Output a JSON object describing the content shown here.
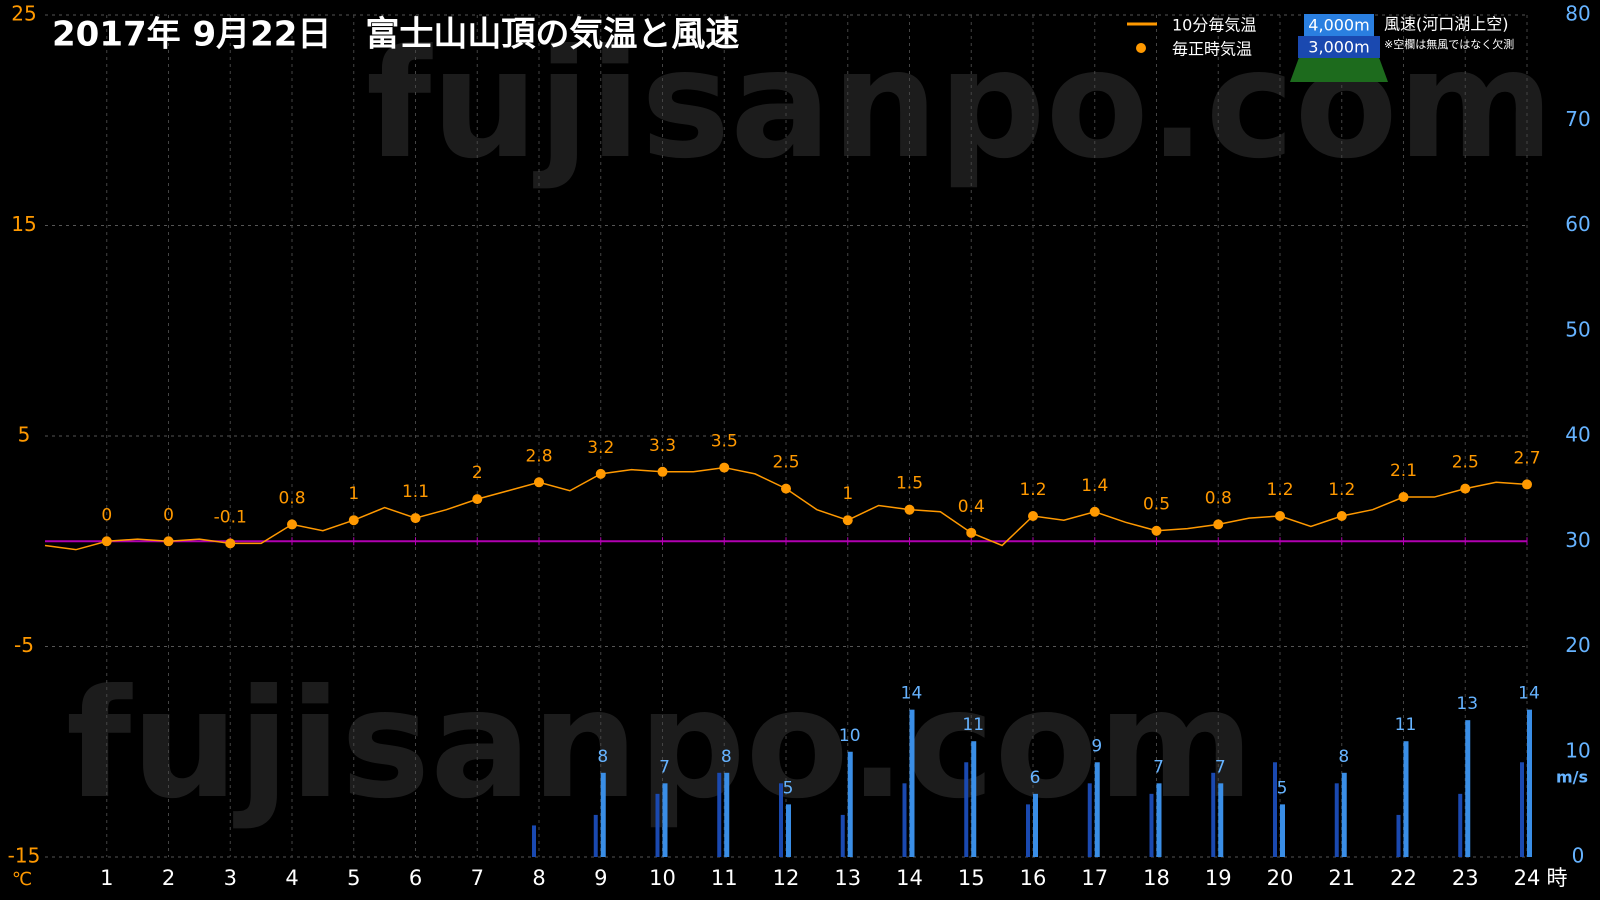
{
  "chart_data": {
    "type": "line",
    "title": "2017年 9月22日　富士山山頂の気温と風速",
    "watermark": "fujisanpo.com",
    "x_unit": "時",
    "y_unit": "℃",
    "y2_unit": "m/s",
    "xlim": [
      0,
      24
    ],
    "xticks": [
      1,
      2,
      3,
      4,
      5,
      6,
      7,
      8,
      9,
      10,
      11,
      12,
      13,
      14,
      15,
      16,
      17,
      18,
      19,
      20,
      21,
      22,
      23,
      24
    ],
    "ylim": [
      -15,
      25
    ],
    "yticks": [
      -15,
      -5,
      5,
      15,
      25
    ],
    "y2lim": [
      0,
      80
    ],
    "y2ticks": [
      0,
      10,
      20,
      30,
      40,
      50,
      60,
      70,
      80
    ],
    "grid": true,
    "reference_line": {
      "value": 0,
      "color": "#b000b0"
    },
    "line_series": {
      "name": "10分毎気温",
      "color": "#ff9900",
      "x": [
        0,
        0.5,
        1,
        1.5,
        2,
        2.5,
        3,
        3.5,
        4,
        4.5,
        5,
        5.5,
        6,
        6.5,
        7,
        7.5,
        8,
        8.5,
        9,
        9.5,
        10,
        10.5,
        11,
        11.5,
        12,
        12.5,
        13,
        13.5,
        14,
        14.5,
        15,
        15.5,
        16,
        16.5,
        17,
        17.5,
        18,
        18.5,
        19,
        19.5,
        20,
        20.5,
        21,
        21.5,
        22,
        22.5,
        23,
        23.5,
        24
      ],
      "values": [
        -0.2,
        -0.4,
        0,
        0.1,
        0,
        0.1,
        -0.1,
        -0.1,
        0.8,
        0.5,
        1.0,
        1.6,
        1.1,
        1.5,
        2.0,
        2.4,
        2.8,
        2.4,
        3.2,
        3.4,
        3.3,
        3.3,
        3.5,
        3.2,
        2.5,
        1.5,
        1.0,
        1.7,
        1.5,
        1.4,
        0.4,
        -0.2,
        1.2,
        1.0,
        1.4,
        0.9,
        0.5,
        0.6,
        0.8,
        1.1,
        1.2,
        0.7,
        1.2,
        1.5,
        2.1,
        2.1,
        2.5,
        2.8,
        2.7
      ]
    },
    "point_series": {
      "name": "毎正時気温",
      "color": "#ff9900",
      "x": [
        1,
        2,
        3,
        4,
        5,
        6,
        7,
        8,
        9,
        10,
        11,
        12,
        13,
        14,
        15,
        16,
        17,
        18,
        19,
        20,
        21,
        22,
        23,
        24
      ],
      "values": [
        0,
        0,
        -0.1,
        0.8,
        1,
        1.1,
        2,
        2.8,
        3.2,
        3.3,
        3.5,
        2.5,
        1,
        1.5,
        0.4,
        1.2,
        1.4,
        0.5,
        0.8,
        1.2,
        1.2,
        2.1,
        2.5,
        2.7
      ]
    },
    "wind_title": "風速(河口湖上空)",
    "wind_note": "※空欄は無風ではなく欠測",
    "wind_series": [
      {
        "name": "4,000m",
        "color": "#3a8ee6",
        "axis": "y2",
        "x": [
          1,
          2,
          3,
          4,
          5,
          6,
          7,
          8,
          9,
          10,
          11,
          12,
          13,
          14,
          15,
          16,
          17,
          18,
          19,
          20,
          21,
          22,
          23,
          24
        ],
        "values": [
          null,
          null,
          null,
          null,
          null,
          null,
          null,
          null,
          8,
          7,
          8,
          5,
          10,
          14,
          11,
          6,
          9,
          7,
          7,
          5,
          8,
          11,
          13,
          14
        ]
      },
      {
        "name": "3,000m",
        "color": "#1a49b0",
        "axis": "y2",
        "x": [
          1,
          2,
          3,
          4,
          5,
          6,
          7,
          8,
          9,
          10,
          11,
          12,
          13,
          14,
          15,
          16,
          17,
          18,
          19,
          20,
          21,
          22,
          23,
          24
        ],
        "values": [
          null,
          null,
          null,
          null,
          null,
          null,
          null,
          3,
          4,
          6,
          8,
          7,
          4,
          7,
          9,
          5,
          7,
          6,
          8,
          9,
          7,
          4,
          6,
          9
        ]
      }
    ]
  }
}
